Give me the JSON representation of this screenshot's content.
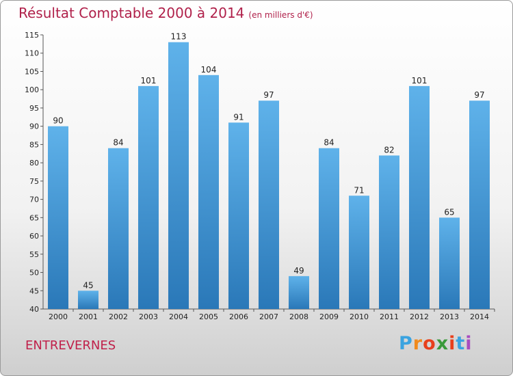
{
  "header": {
    "title": "Résultat Comptable 2000 à 2014",
    "subtitle": "(en milliers d'€)"
  },
  "footer": {
    "commune": "ENTREVERNES",
    "logo_text": "Proxiti"
  },
  "colors": {
    "title": "#b0204a",
    "bar_top": "#5fb2ea",
    "bar_bottom": "#2a78b8",
    "logo": [
      "#3aa3e0",
      "#f08a1c",
      "#e8401c",
      "#3a9a3a",
      "#e8401c",
      "#3aa3e0",
      "#a84cc0"
    ]
  },
  "chart_data": {
    "type": "bar",
    "title": "Résultat Comptable 2000 à 2014",
    "subtitle": "(en milliers d'€)",
    "xlabel": "",
    "ylabel": "",
    "categories": [
      "2000",
      "2001",
      "2002",
      "2003",
      "2004",
      "2005",
      "2006",
      "2007",
      "2008",
      "2009",
      "2010",
      "2011",
      "2012",
      "2013",
      "2014"
    ],
    "values": [
      90,
      45,
      84,
      101,
      113,
      104,
      91,
      97,
      49,
      84,
      71,
      82,
      101,
      65,
      97
    ],
    "ylim": [
      40,
      115
    ],
    "yticks": [
      40,
      45,
      50,
      55,
      60,
      65,
      70,
      75,
      80,
      85,
      90,
      95,
      100,
      105,
      110,
      115
    ],
    "grid": false,
    "legend": "none"
  }
}
